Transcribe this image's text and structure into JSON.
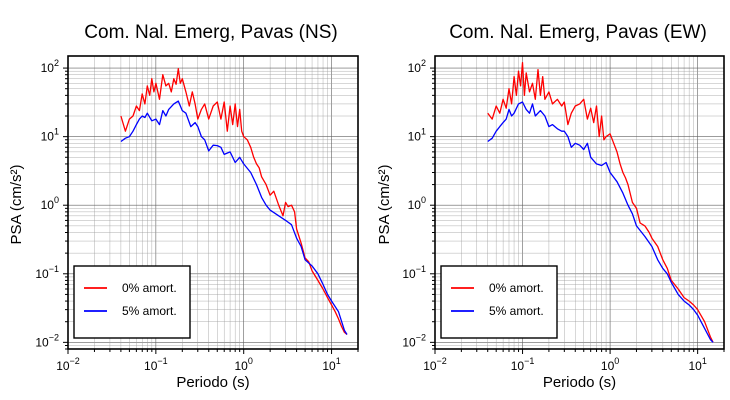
{
  "chart_data": [
    {
      "type": "line",
      "title": "Com. Nal. Emerg, Pavas (NS)",
      "xlabel": "Periodo (s)",
      "ylabel": "PSA (cm/s²)",
      "xscale": "log",
      "yscale": "log",
      "xlim": [
        0.01,
        20
      ],
      "ylim": [
        0.008,
        150
      ],
      "grid": true,
      "legend_position": "bottom-left",
      "x_tick_labels": [
        {
          "x": 0.01,
          "base": "10",
          "exp": "−2"
        },
        {
          "x": 0.1,
          "base": "10",
          "exp": "−1"
        },
        {
          "x": 1,
          "base": "10",
          "exp": "0"
        },
        {
          "x": 10,
          "base": "10",
          "exp": "1"
        }
      ],
      "y_tick_labels": [
        {
          "y": 0.01,
          "base": "10",
          "exp": "−2"
        },
        {
          "y": 0.1,
          "base": "10",
          "exp": "−1"
        },
        {
          "y": 1,
          "base": "10",
          "exp": "0"
        },
        {
          "y": 10,
          "base": "10",
          "exp": "1"
        },
        {
          "y": 100,
          "base": "10",
          "exp": "2"
        }
      ],
      "series": [
        {
          "name": "0% amort.",
          "color": "#ff0000",
          "x": [
            0.04,
            0.045,
            0.05,
            0.055,
            0.06,
            0.065,
            0.07,
            0.075,
            0.08,
            0.085,
            0.09,
            0.095,
            0.1,
            0.11,
            0.12,
            0.13,
            0.14,
            0.15,
            0.16,
            0.17,
            0.18,
            0.19,
            0.2,
            0.22,
            0.24,
            0.26,
            0.28,
            0.3,
            0.33,
            0.36,
            0.4,
            0.45,
            0.5,
            0.55,
            0.6,
            0.65,
            0.7,
            0.75,
            0.8,
            0.85,
            0.9,
            0.95,
            1.0,
            1.1,
            1.2,
            1.3,
            1.4,
            1.5,
            1.6,
            1.8,
            2.0,
            2.2,
            2.5,
            2.8,
            3.0,
            3.2,
            3.5,
            3.8,
            4.0,
            4.5,
            5.0,
            5.5,
            6.0,
            7.0,
            8.0,
            9.0,
            10.0,
            11.0,
            12.0,
            13.0,
            14.0,
            15.0
          ],
          "values": [
            20,
            12,
            18,
            20,
            28,
            24,
            42,
            30,
            55,
            40,
            70,
            45,
            60,
            35,
            80,
            55,
            60,
            45,
            70,
            58,
            98,
            60,
            70,
            45,
            28,
            45,
            30,
            18,
            25,
            30,
            18,
            28,
            32,
            18,
            32,
            12,
            28,
            15,
            30,
            14,
            25,
            12,
            10,
            9,
            7,
            5,
            4,
            3.5,
            2.6,
            2.0,
            1.4,
            1.6,
            1.0,
            0.7,
            1.1,
            0.95,
            1.0,
            0.8,
            0.45,
            0.28,
            0.17,
            0.15,
            0.11,
            0.08,
            0.06,
            0.045,
            0.035,
            0.028,
            0.022,
            0.017,
            0.014,
            0.013
          ]
        },
        {
          "name": "5% amort.",
          "color": "#0000ff",
          "x": [
            0.04,
            0.045,
            0.05,
            0.055,
            0.06,
            0.065,
            0.07,
            0.075,
            0.08,
            0.09,
            0.1,
            0.11,
            0.12,
            0.13,
            0.14,
            0.16,
            0.18,
            0.2,
            0.22,
            0.25,
            0.28,
            0.3,
            0.33,
            0.36,
            0.4,
            0.45,
            0.5,
            0.55,
            0.6,
            0.7,
            0.8,
            0.9,
            1.0,
            1.2,
            1.4,
            1.6,
            1.8,
            2.0,
            2.5,
            3.0,
            3.5,
            4.0,
            4.5,
            5.0,
            6.0,
            7.0,
            8.0,
            9.0,
            10.0,
            12.0,
            14.0,
            15.0
          ],
          "values": [
            8.5,
            9.5,
            10,
            12,
            15,
            18,
            20,
            19,
            22,
            17,
            18,
            15,
            24,
            20,
            25,
            30,
            33,
            24,
            22,
            14,
            16,
            14,
            10,
            9,
            6.2,
            7.5,
            7.4,
            7,
            5.5,
            6,
            4.2,
            5,
            4,
            3,
            2,
            1.3,
            1.0,
            0.85,
            0.7,
            0.6,
            0.52,
            0.33,
            0.25,
            0.16,
            0.13,
            0.1,
            0.07,
            0.05,
            0.04,
            0.028,
            0.015,
            0.013
          ]
        }
      ]
    },
    {
      "type": "line",
      "title": "Com. Nal. Emerg, Pavas (EW)",
      "xlabel": "Periodo (s)",
      "ylabel": "PSA (cm/s²)",
      "xscale": "log",
      "yscale": "log",
      "xlim": [
        0.01,
        20
      ],
      "ylim": [
        0.008,
        150
      ],
      "grid": true,
      "legend_position": "bottom-left",
      "x_tick_labels": [
        {
          "x": 0.01,
          "base": "10",
          "exp": "−2"
        },
        {
          "x": 0.1,
          "base": "10",
          "exp": "−1"
        },
        {
          "x": 1,
          "base": "10",
          "exp": "0"
        },
        {
          "x": 10,
          "base": "10",
          "exp": "1"
        }
      ],
      "y_tick_labels": [
        {
          "y": 0.01,
          "base": "10",
          "exp": "−2"
        },
        {
          "y": 0.1,
          "base": "10",
          "exp": "−1"
        },
        {
          "y": 1,
          "base": "10",
          "exp": "0"
        },
        {
          "y": 10,
          "base": "10",
          "exp": "1"
        },
        {
          "y": 100,
          "base": "10",
          "exp": "2"
        }
      ],
      "series": [
        {
          "name": "0% amort.",
          "color": "#ff0000",
          "x": [
            0.04,
            0.045,
            0.05,
            0.055,
            0.06,
            0.065,
            0.07,
            0.075,
            0.08,
            0.085,
            0.09,
            0.095,
            0.1,
            0.105,
            0.11,
            0.12,
            0.13,
            0.14,
            0.15,
            0.16,
            0.17,
            0.18,
            0.2,
            0.22,
            0.25,
            0.28,
            0.3,
            0.33,
            0.36,
            0.4,
            0.45,
            0.5,
            0.55,
            0.6,
            0.65,
            0.7,
            0.75,
            0.8,
            0.85,
            0.9,
            1.0,
            1.1,
            1.2,
            1.3,
            1.4,
            1.5,
            1.6,
            1.8,
            2.0,
            2.2,
            2.5,
            2.8,
            3.0,
            3.5,
            4.0,
            4.5,
            5.0,
            6.0,
            7.0,
            8.0,
            9.0,
            10.0,
            12.0,
            14.0,
            15.0
          ],
          "values": [
            22,
            18,
            28,
            22,
            35,
            26,
            50,
            30,
            75,
            40,
            90,
            55,
            120,
            40,
            85,
            45,
            60,
            35,
            95,
            40,
            75,
            35,
            45,
            30,
            35,
            28,
            32,
            15,
            22,
            28,
            30,
            35,
            18,
            26,
            16,
            28,
            10,
            20,
            9,
            10,
            11,
            8,
            6,
            4,
            3,
            2.5,
            2.0,
            1.1,
            0.9,
            0.55,
            0.5,
            0.4,
            0.33,
            0.25,
            0.16,
            0.12,
            0.08,
            0.06,
            0.045,
            0.04,
            0.035,
            0.03,
            0.02,
            0.012,
            0.01
          ]
        },
        {
          "name": "5% amort.",
          "color": "#0000ff",
          "x": [
            0.04,
            0.045,
            0.05,
            0.055,
            0.06,
            0.065,
            0.07,
            0.075,
            0.08,
            0.09,
            0.1,
            0.11,
            0.12,
            0.13,
            0.14,
            0.16,
            0.18,
            0.2,
            0.22,
            0.25,
            0.28,
            0.3,
            0.33,
            0.36,
            0.4,
            0.45,
            0.5,
            0.55,
            0.6,
            0.7,
            0.8,
            0.9,
            1.0,
            1.2,
            1.4,
            1.6,
            1.8,
            2.0,
            2.5,
            3.0,
            3.5,
            4.0,
            4.5,
            5.0,
            6.0,
            7.0,
            8.0,
            9.0,
            10.0,
            12.0,
            14.0,
            15.0
          ],
          "values": [
            8.5,
            9.5,
            12,
            14,
            16,
            18,
            25,
            20,
            22,
            30,
            32,
            25,
            22,
            30,
            20,
            24,
            20,
            14,
            15,
            13,
            12,
            12,
            10,
            7,
            8,
            7.5,
            6.5,
            8,
            5,
            4,
            3.8,
            4.2,
            3,
            2.2,
            1.5,
            1.0,
            0.75,
            0.5,
            0.35,
            0.25,
            0.16,
            0.12,
            0.1,
            0.075,
            0.05,
            0.04,
            0.035,
            0.03,
            0.025,
            0.016,
            0.011,
            0.01
          ]
        }
      ]
    }
  ]
}
